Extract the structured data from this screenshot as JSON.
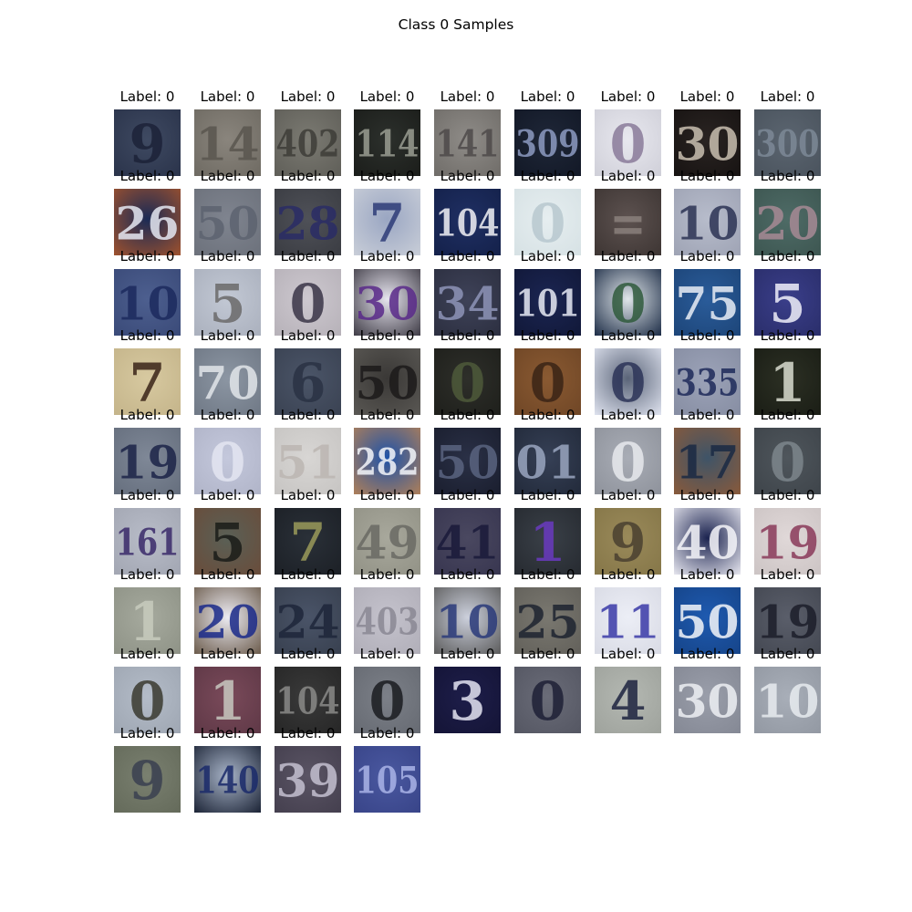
{
  "figure": {
    "title": "Class 0 Samples",
    "samples": [
      {
        "label": "Label: 0",
        "digits": "9",
        "bg": "#3f4a62",
        "fg": "#1c2238",
        "edge": "#2a334a"
      },
      {
        "label": "Label: 0",
        "digits": "14",
        "bg": "#8a857d",
        "fg": "#5a564f",
        "edge": "#6e6a62"
      },
      {
        "label": "Label: 0",
        "digits": "402",
        "bg": "#7b7a72",
        "fg": "#3e3d38",
        "edge": "#5f5e58"
      },
      {
        "label": "Label: 0",
        "digits": "114",
        "bg": "#2c302c",
        "fg": "#9a9d92",
        "edge": "#1b1d1a"
      },
      {
        "label": "Label: 0",
        "digits": "141",
        "bg": "#8f8c88",
        "fg": "#4e4a4a",
        "edge": "#6f6c68"
      },
      {
        "label": "Label: 0",
        "digits": "309",
        "bg": "#1f2738",
        "fg": "#8d9bc2",
        "edge": "#121826"
      },
      {
        "label": "Label: 0",
        "digits": "0",
        "bg": "#e8e8ef",
        "fg": "#8a7b9a",
        "edge": "#cfcfd8"
      },
      {
        "label": "Label: 0",
        "digits": "30",
        "bg": "#2a2422",
        "fg": "#c9bfb0",
        "edge": "#171312"
      },
      {
        "label": "Label: 0",
        "digits": "300",
        "bg": "#5b6570",
        "fg": "#7d8997",
        "edge": "#4a535d"
      },
      {
        "label": "Label: 0",
        "digits": "26",
        "bg": "#1a2a55",
        "fg": "#e5e8f2",
        "edge": "#a0522d"
      },
      {
        "label": "Label: 0",
        "digits": "50",
        "bg": "#7f848f",
        "fg": "#5d6370",
        "edge": "#6c717b"
      },
      {
        "label": "Label: 0",
        "digits": "28",
        "bg": "#4f5158",
        "fg": "#2a2c66",
        "edge": "#3a3c42"
      },
      {
        "label": "Label: 0",
        "digits": "7",
        "bg": "#9aa6c2",
        "fg": "#2e3c78",
        "edge": "#c9ced8"
      },
      {
        "label": "Label: 0",
        "digits": "104",
        "bg": "#1f2f63",
        "fg": "#f2f2f6",
        "edge": "#14214a"
      },
      {
        "label": "Label: 0",
        "digits": "0",
        "bg": "#e6eef0",
        "fg": "#b8c8cf",
        "edge": "#d6e1e4"
      },
      {
        "label": "Label: 0",
        "digits": "=",
        "bg": "#5d5250",
        "fg": "#8a807c",
        "edge": "#3d3533"
      },
      {
        "label": "Label: 0",
        "digits": "10",
        "bg": "#b7bccb",
        "fg": "#2c3354",
        "edge": "#9ea3b4"
      },
      {
        "label": "Label: 0",
        "digits": "20",
        "bg": "#4e6b66",
        "fg": "#a78a95",
        "edge": "#3d5651"
      },
      {
        "label": "Label: 0",
        "digits": "10",
        "bg": "#4d5f8f",
        "fg": "#1c2a5e",
        "edge": "#3a4a78"
      },
      {
        "label": "Label: 0",
        "digits": "5",
        "bg": "#c2c8d4",
        "fg": "#6b6a6a",
        "edge": "#aab0bd"
      },
      {
        "label": "Label: 0",
        "digits": "0",
        "bg": "#cdc8cf",
        "fg": "#3a3547",
        "edge": "#b6b1b8"
      },
      {
        "label": "Label: 0",
        "digits": "30",
        "bg": "#e6e4ee",
        "fg": "#5a2a8a",
        "edge": "#3d3a44"
      },
      {
        "label": "Label: 0",
        "digits": "34",
        "bg": "#3e4258",
        "fg": "#8e94b8",
        "edge": "#2c2f40"
      },
      {
        "label": "Label: 0",
        "digits": "101",
        "bg": "#1b2552",
        "fg": "#e8ebf5",
        "edge": "#111838"
      },
      {
        "label": "Label: 0",
        "digits": "0",
        "bg": "#e0e6ea",
        "fg": "#2f5a3c",
        "edge": "#1a2a44"
      },
      {
        "label": "Label: 0",
        "digits": "75",
        "bg": "#2a5c9a",
        "fg": "#e9eef6",
        "edge": "#1d4578"
      },
      {
        "label": "Label: 0",
        "digits": "5",
        "bg": "#3a3e8a",
        "fg": "#f0f0fa",
        "edge": "#2a2e6a"
      },
      {
        "label": "Label: 0",
        "digits": "7",
        "bg": "#d7c9a0",
        "fg": "#3a2418",
        "edge": "#c4b48a"
      },
      {
        "label": "Label: 0",
        "digits": "70",
        "bg": "#8c96a3",
        "fg": "#e2e6ea",
        "edge": "#6f7885"
      },
      {
        "label": "Label: 0",
        "digits": "6",
        "bg": "#4b5568",
        "fg": "#2a3244",
        "edge": "#3a4252"
      },
      {
        "label": "Label: 0",
        "digits": "50",
        "bg": "#3a3836",
        "fg": "#1c1a1a",
        "edge": "#5a5854"
      },
      {
        "label": "Label: 0",
        "digits": "0",
        "bg": "#2e2f2a",
        "fg": "#4e5a3a",
        "edge": "#1e1f1b"
      },
      {
        "label": "Label: 0",
        "digits": "0",
        "bg": "#8a5a32",
        "fg": "#3a2416",
        "edge": "#6f4626"
      },
      {
        "label": "Label: 0",
        "digits": "0",
        "bg": "#5a6478",
        "fg": "#2c3458",
        "edge": "#e0e4f0"
      },
      {
        "label": "Label: 0",
        "digits": "335",
        "bg": "#9ca3b8",
        "fg": "#1e2a5a",
        "edge": "#868da2"
      },
      {
        "label": "Label: 0",
        "digits": "1",
        "bg": "#2c3024",
        "fg": "#d9dccf",
        "edge": "#1a1d15"
      },
      {
        "label": "Label: 0",
        "digits": "19",
        "bg": "#7f8897",
        "fg": "#1c2448",
        "edge": "#656e7d"
      },
      {
        "label": "Label: 0",
        "digits": "0",
        "bg": "#c4c8dc",
        "fg": "#e4e6f2",
        "edge": "#b0b4c8"
      },
      {
        "label": "Label: 0",
        "digits": "51",
        "bg": "#d8d6d4",
        "fg": "#bcb6b2",
        "edge": "#c6c4c2"
      },
      {
        "label": "Label: 0",
        "digits": "282",
        "bg": "#1e52a8",
        "fg": "#f4f6fa",
        "edge": "#b08058"
      },
      {
        "label": "Label: 0",
        "digits": "50",
        "bg": "#2a3046",
        "fg": "#5a6480",
        "edge": "#1a1e2e"
      },
      {
        "label": "Label: 0",
        "digits": "01",
        "bg": "#364056",
        "fg": "#9aa6c0",
        "edge": "#222a3a"
      },
      {
        "label": "Label: 0",
        "digits": "0",
        "bg": "#a9adb6",
        "fg": "#e8eaee",
        "edge": "#8e929b"
      },
      {
        "label": "Label: 0",
        "digits": "17",
        "bg": "#3e5468",
        "fg": "#1a2a44",
        "edge": "#8a5a3a"
      },
      {
        "label": "Label: 0",
        "digits": "0",
        "bg": "#4f565c",
        "fg": "#7d868c",
        "edge": "#3e444a"
      },
      {
        "label": "Label: 0",
        "digits": "161",
        "bg": "#b8bcc8",
        "fg": "#3a2a6a",
        "edge": "#a2a6b2"
      },
      {
        "label": "Label: 0",
        "digits": "5",
        "bg": "#5a6056",
        "fg": "#1a1c18",
        "edge": "#6a4c3a"
      },
      {
        "label": "Label: 0",
        "digits": "7",
        "bg": "#2a3038",
        "fg": "#9a9a5a",
        "edge": "#1c2026"
      },
      {
        "label": "Label: 0",
        "digits": "49",
        "bg": "#a8a89c",
        "fg": "#6a6a64",
        "edge": "#929286"
      },
      {
        "label": "Label: 0",
        "digits": "41",
        "bg": "#4a4860",
        "fg": "#1a1a3a",
        "edge": "#383650"
      },
      {
        "label": "Label: 0",
        "digits": "1",
        "bg": "#3a4048",
        "fg": "#6a3ac0",
        "edge": "#262a30"
      },
      {
        "label": "Label: 0",
        "digits": "9",
        "bg": "#9a8a5a",
        "fg": "#4a4030",
        "edge": "#857648"
      },
      {
        "label": "Label: 0",
        "digits": "40",
        "bg": "#1c2450",
        "fg": "#f6f6fa",
        "edge": "#e8e8f0"
      },
      {
        "label": "Label: 0",
        "digits": "19",
        "bg": "#e0d8d8",
        "fg": "#8a3a5a",
        "edge": "#ccc4c4"
      },
      {
        "label": "Label: 0",
        "digits": "1",
        "bg": "#a6aa9e",
        "fg": "#c8ccbe",
        "edge": "#8e9286"
      },
      {
        "label": "Label: 0",
        "digits": "20",
        "bg": "#ecebf2",
        "fg": "#1a2a8a",
        "edge": "#6a5a4a"
      },
      {
        "label": "Label: 0",
        "digits": "24",
        "bg": "#4a5468",
        "fg": "#1e263a",
        "edge": "#38404f"
      },
      {
        "label": "Label: 0",
        "digits": "403",
        "bg": "#c4c2cc",
        "fg": "#8a8894",
        "edge": "#b0aeb8"
      },
      {
        "label": "Label: 0",
        "digits": "10",
        "bg": "#ccd0dc",
        "fg": "#2a3a7a",
        "edge": "#5a5a5a"
      },
      {
        "label": "Label: 0",
        "digits": "25",
        "bg": "#7a7870",
        "fg": "#1e2430",
        "edge": "#62605a"
      },
      {
        "label": "Label: 0",
        "digits": "11",
        "bg": "#eceef6",
        "fg": "#3a3aa8",
        "edge": "#d8dae4"
      },
      {
        "label": "Label: 0",
        "digits": "50",
        "bg": "#1e5ab0",
        "fg": "#f4f6fa",
        "edge": "#164488"
      },
      {
        "label": "Label: 0",
        "digits": "19",
        "bg": "#5a5e6a",
        "fg": "#1c1e2a",
        "edge": "#444852"
      },
      {
        "label": "Label: 0",
        "digits": "0",
        "bg": "#b4bcc8",
        "fg": "#3a3a30",
        "edge": "#9ea6b2"
      },
      {
        "label": "Label: 0",
        "digits": "1",
        "bg": "#7a4a5a",
        "fg": "#c8c8c0",
        "edge": "#5e3846"
      },
      {
        "label": "Label: 0",
        "digits": "104",
        "bg": "#3a3a3a",
        "fg": "#8a8a88",
        "edge": "#262626"
      },
      {
        "label": "Label: 0",
        "digits": "0",
        "bg": "#7c8088",
        "fg": "#1a1c20",
        "edge": "#666a72"
      },
      {
        "label": "Label: 0",
        "digits": "3",
        "bg": "#1e1e4a",
        "fg": "#e4e4f2",
        "edge": "#141436"
      },
      {
        "label": "Label: 0",
        "digits": "0",
        "bg": "#6a6c78",
        "fg": "#1e2036",
        "edge": "#545662"
      },
      {
        "label": "Label: 0",
        "digits": "4",
        "bg": "#b4b8b2",
        "fg": "#1e2440",
        "edge": "#9ea29c"
      },
      {
        "label": "Label: 0",
        "digits": "30",
        "bg": "#9a9eaa",
        "fg": "#eef0f4",
        "edge": "#848894"
      },
      {
        "label": "Label: 0",
        "digits": "10",
        "bg": "#a8aeb8",
        "fg": "#e8ecf0",
        "edge": "#9298a2"
      },
      {
        "label": "Label: 0",
        "digits": "9",
        "bg": "#7a8070",
        "fg": "#3a4050",
        "edge": "#646a5a"
      },
      {
        "label": "Label: 0",
        "digits": "140",
        "bg": "#a8b4c8",
        "fg": "#1a2a6a",
        "edge": "#1a2234"
      },
      {
        "label": "Label: 0",
        "digits": "39",
        "bg": "#5a5464",
        "fg": "#c4c0d0",
        "edge": "#443f4e"
      },
      {
        "label": "Label: 0",
        "digits": "105",
        "bg": "#4a58a0",
        "fg": "#aab4e8",
        "edge": "#384488"
      }
    ]
  }
}
